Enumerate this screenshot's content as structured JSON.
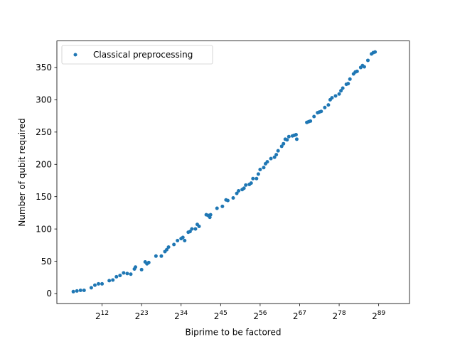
{
  "chart_data": {
    "type": "scatter",
    "xlabel": "Biprime to be factored",
    "ylabel": "Number of qubit required",
    "x_axis": {
      "scale": "log2",
      "tick_base": "2",
      "tick_exponents": [
        "12",
        "23",
        "34",
        "45",
        "56",
        "67",
        "78",
        "89"
      ],
      "xlim_exponent": [
        -0.58,
        97.58
      ]
    },
    "y_axis": {
      "ylim": [
        -15.6,
        391.1
      ],
      "ticks": [
        0,
        50,
        100,
        150,
        200,
        250,
        300,
        350
      ]
    },
    "grid": false,
    "legend_position": "upper-left",
    "series": [
      {
        "name": "Classical preprocessing",
        "color": "#1f77b4",
        "points": [
          [
            4,
            3
          ],
          [
            5,
            4
          ],
          [
            6,
            5
          ],
          [
            7,
            5
          ],
          [
            9,
            9
          ],
          [
            10,
            13
          ],
          [
            11,
            15
          ],
          [
            12,
            15
          ],
          [
            14,
            20
          ],
          [
            15,
            21
          ],
          [
            16,
            26
          ],
          [
            17,
            28
          ],
          [
            18,
            32
          ],
          [
            19,
            31
          ],
          [
            20,
            30
          ],
          [
            21,
            38
          ],
          [
            21.3,
            41
          ],
          [
            23,
            37
          ],
          [
            24,
            49
          ],
          [
            24.5,
            46
          ],
          [
            25,
            48
          ],
          [
            27,
            58
          ],
          [
            28.5,
            58
          ],
          [
            29.5,
            65
          ],
          [
            30,
            68
          ],
          [
            30.5,
            72
          ],
          [
            32,
            76
          ],
          [
            33,
            82
          ],
          [
            34,
            85
          ],
          [
            34.5,
            87
          ],
          [
            35,
            82
          ],
          [
            36,
            95
          ],
          [
            36.5,
            96
          ],
          [
            37,
            100
          ],
          [
            38,
            100
          ],
          [
            38.5,
            107
          ],
          [
            39,
            104
          ],
          [
            41,
            122
          ],
          [
            41.5,
            121
          ],
          [
            42,
            118
          ],
          [
            42.2,
            122
          ],
          [
            44,
            132
          ],
          [
            45.5,
            135
          ],
          [
            46.5,
            145
          ],
          [
            47,
            144
          ],
          [
            48.5,
            148
          ],
          [
            49.5,
            155
          ],
          [
            50,
            159
          ],
          [
            51,
            161
          ],
          [
            51.5,
            163
          ],
          [
            52,
            168
          ],
          [
            53,
            169
          ],
          [
            53.5,
            171
          ],
          [
            54,
            178
          ],
          [
            55,
            178
          ],
          [
            55.5,
            185
          ],
          [
            56,
            192
          ],
          [
            57,
            195
          ],
          [
            57.5,
            201
          ],
          [
            58,
            204
          ],
          [
            59,
            209
          ],
          [
            60,
            211
          ],
          [
            60.5,
            215
          ],
          [
            61,
            221
          ],
          [
            62,
            228
          ],
          [
            62.5,
            232
          ],
          [
            63,
            239
          ],
          [
            63.5,
            238
          ],
          [
            64,
            243
          ],
          [
            65,
            244
          ],
          [
            65.5,
            245
          ],
          [
            66,
            246
          ],
          [
            66.2,
            239
          ],
          [
            69,
            265
          ],
          [
            69.5,
            266
          ],
          [
            70,
            267
          ],
          [
            71,
            274
          ],
          [
            72,
            280
          ],
          [
            72.5,
            281
          ],
          [
            73,
            282
          ],
          [
            74,
            288
          ],
          [
            75,
            292
          ],
          [
            75.5,
            300
          ],
          [
            76,
            303
          ],
          [
            77,
            306
          ],
          [
            78,
            309
          ],
          [
            78.5,
            314
          ],
          [
            79,
            318
          ],
          [
            80,
            324
          ],
          [
            80.5,
            325
          ],
          [
            81,
            332
          ],
          [
            82,
            340
          ],
          [
            82.5,
            343
          ],
          [
            83,
            344
          ],
          [
            84,
            350
          ],
          [
            84.5,
            353
          ],
          [
            85,
            351
          ],
          [
            86,
            361
          ],
          [
            87,
            371
          ],
          [
            87.5,
            373
          ],
          [
            88,
            374
          ]
        ]
      }
    ]
  }
}
